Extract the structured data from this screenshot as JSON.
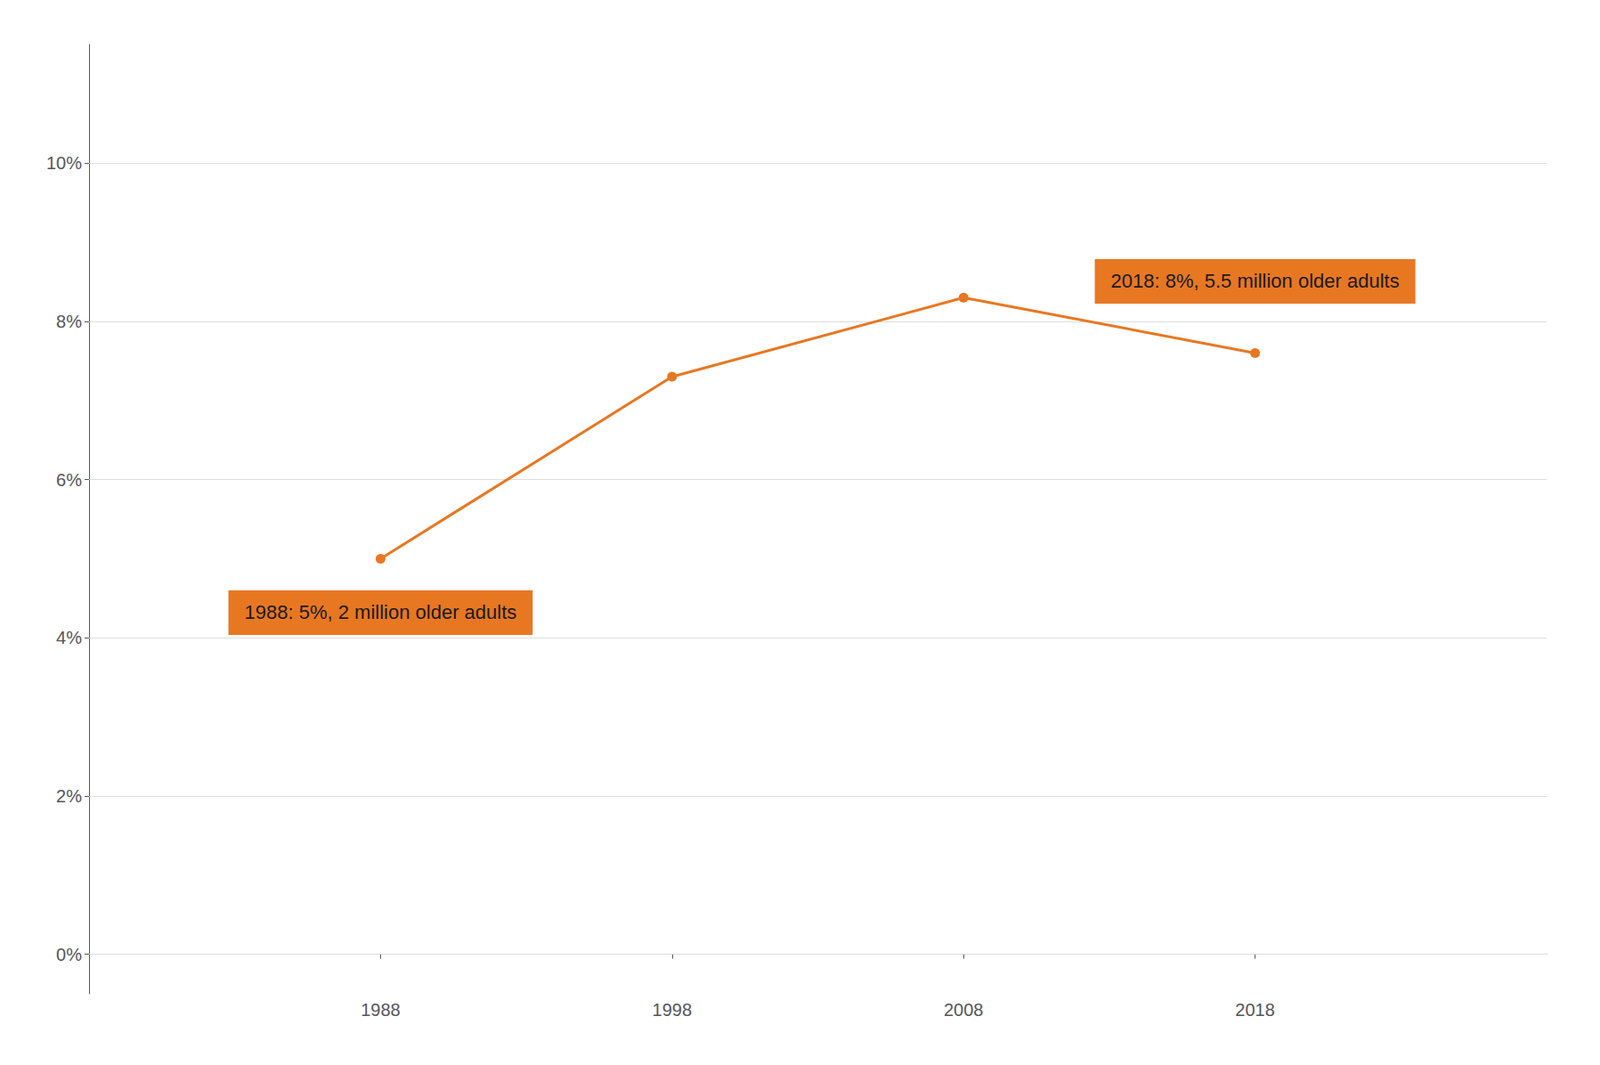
{
  "chart_data": {
    "type": "line",
    "x": [
      1988,
      1998,
      2008,
      2018
    ],
    "values": [
      0.05,
      0.073,
      0.083,
      0.076
    ],
    "color": "#E87722",
    "marker": "circle",
    "xlim": [
      1978,
      2028
    ],
    "xticks": [
      1988,
      1998,
      2008,
      2018
    ],
    "ylim": [
      -0.005,
      0.115
    ],
    "yticks": [
      {
        "value": 0.0,
        "label": "0%"
      },
      {
        "value": 0.02,
        "label": "2%"
      },
      {
        "value": 0.04,
        "label": "4%"
      },
      {
        "value": 0.06,
        "label": "6%"
      },
      {
        "value": 0.08,
        "label": "8%"
      },
      {
        "value": 0.1,
        "label": "10%"
      }
    ],
    "grid": true,
    "annotations": [
      {
        "x": 1988,
        "text": "1988: 5%, 2 million older adults"
      },
      {
        "x": 2018,
        "text": "2018: 8%, 5.5 million older adults"
      }
    ]
  }
}
